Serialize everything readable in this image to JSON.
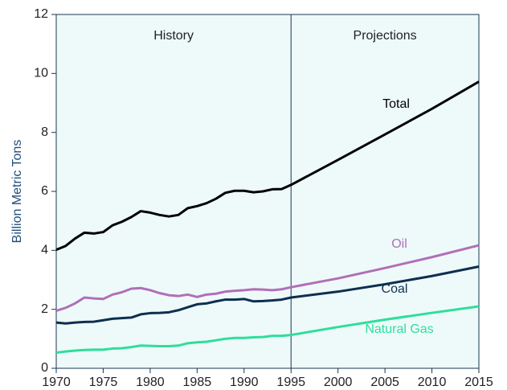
{
  "chart_data": {
    "type": "line",
    "y_label": "Billion Metric Tons",
    "x": [
      1970,
      1971,
      1972,
      1973,
      1974,
      1975,
      1976,
      1977,
      1978,
      1979,
      1980,
      1981,
      1982,
      1983,
      1984,
      1985,
      1986,
      1987,
      1988,
      1989,
      1990,
      1991,
      1992,
      1993,
      1994,
      1995,
      2000,
      2005,
      2010,
      2015
    ],
    "series": [
      {
        "name": "Total",
        "color": "#000000",
        "values": [
          4.02,
          4.15,
          4.4,
          4.6,
          4.57,
          4.62,
          4.85,
          4.97,
          5.13,
          5.33,
          5.28,
          5.2,
          5.15,
          5.2,
          5.43,
          5.5,
          5.6,
          5.75,
          5.95,
          6.02,
          6.02,
          5.97,
          6.0,
          6.07,
          6.08,
          6.22,
          7.07,
          7.93,
          8.8,
          9.72
        ]
      },
      {
        "name": "Oil",
        "color": "#b06fb8",
        "values": [
          1.95,
          2.05,
          2.2,
          2.4,
          2.37,
          2.35,
          2.5,
          2.58,
          2.7,
          2.72,
          2.65,
          2.55,
          2.48,
          2.45,
          2.5,
          2.42,
          2.5,
          2.53,
          2.6,
          2.63,
          2.65,
          2.68,
          2.67,
          2.65,
          2.68,
          2.75,
          3.05,
          3.4,
          3.77,
          4.17
        ]
      },
      {
        "name": "Coal",
        "color": "#0d2f4f",
        "values": [
          1.55,
          1.52,
          1.55,
          1.57,
          1.58,
          1.63,
          1.68,
          1.7,
          1.72,
          1.83,
          1.87,
          1.88,
          1.9,
          1.97,
          2.07,
          2.17,
          2.2,
          2.27,
          2.33,
          2.33,
          2.35,
          2.27,
          2.28,
          2.3,
          2.33,
          2.4,
          2.6,
          2.85,
          3.13,
          3.45
        ]
      },
      {
        "name": "Natural Gas",
        "color": "#2ede9a",
        "values": [
          0.53,
          0.57,
          0.6,
          0.62,
          0.63,
          0.63,
          0.67,
          0.68,
          0.72,
          0.77,
          0.76,
          0.75,
          0.75,
          0.77,
          0.85,
          0.88,
          0.9,
          0.95,
          1.0,
          1.03,
          1.03,
          1.05,
          1.06,
          1.1,
          1.1,
          1.13,
          1.4,
          1.65,
          1.88,
          2.1
        ]
      }
    ],
    "regions": [
      {
        "label": "History",
        "range": [
          1970,
          1995
        ]
      },
      {
        "label": "Projections",
        "range": [
          1995,
          2015
        ]
      }
    ],
    "xlim": [
      1970,
      2015
    ],
    "xticks": [
      1970,
      1975,
      1980,
      1985,
      1990,
      1995,
      2000,
      2005,
      2010,
      2015
    ],
    "ylim": [
      0,
      12
    ],
    "yticks": [
      0,
      2,
      4,
      6,
      8,
      10,
      12
    ],
    "grid": false
  }
}
